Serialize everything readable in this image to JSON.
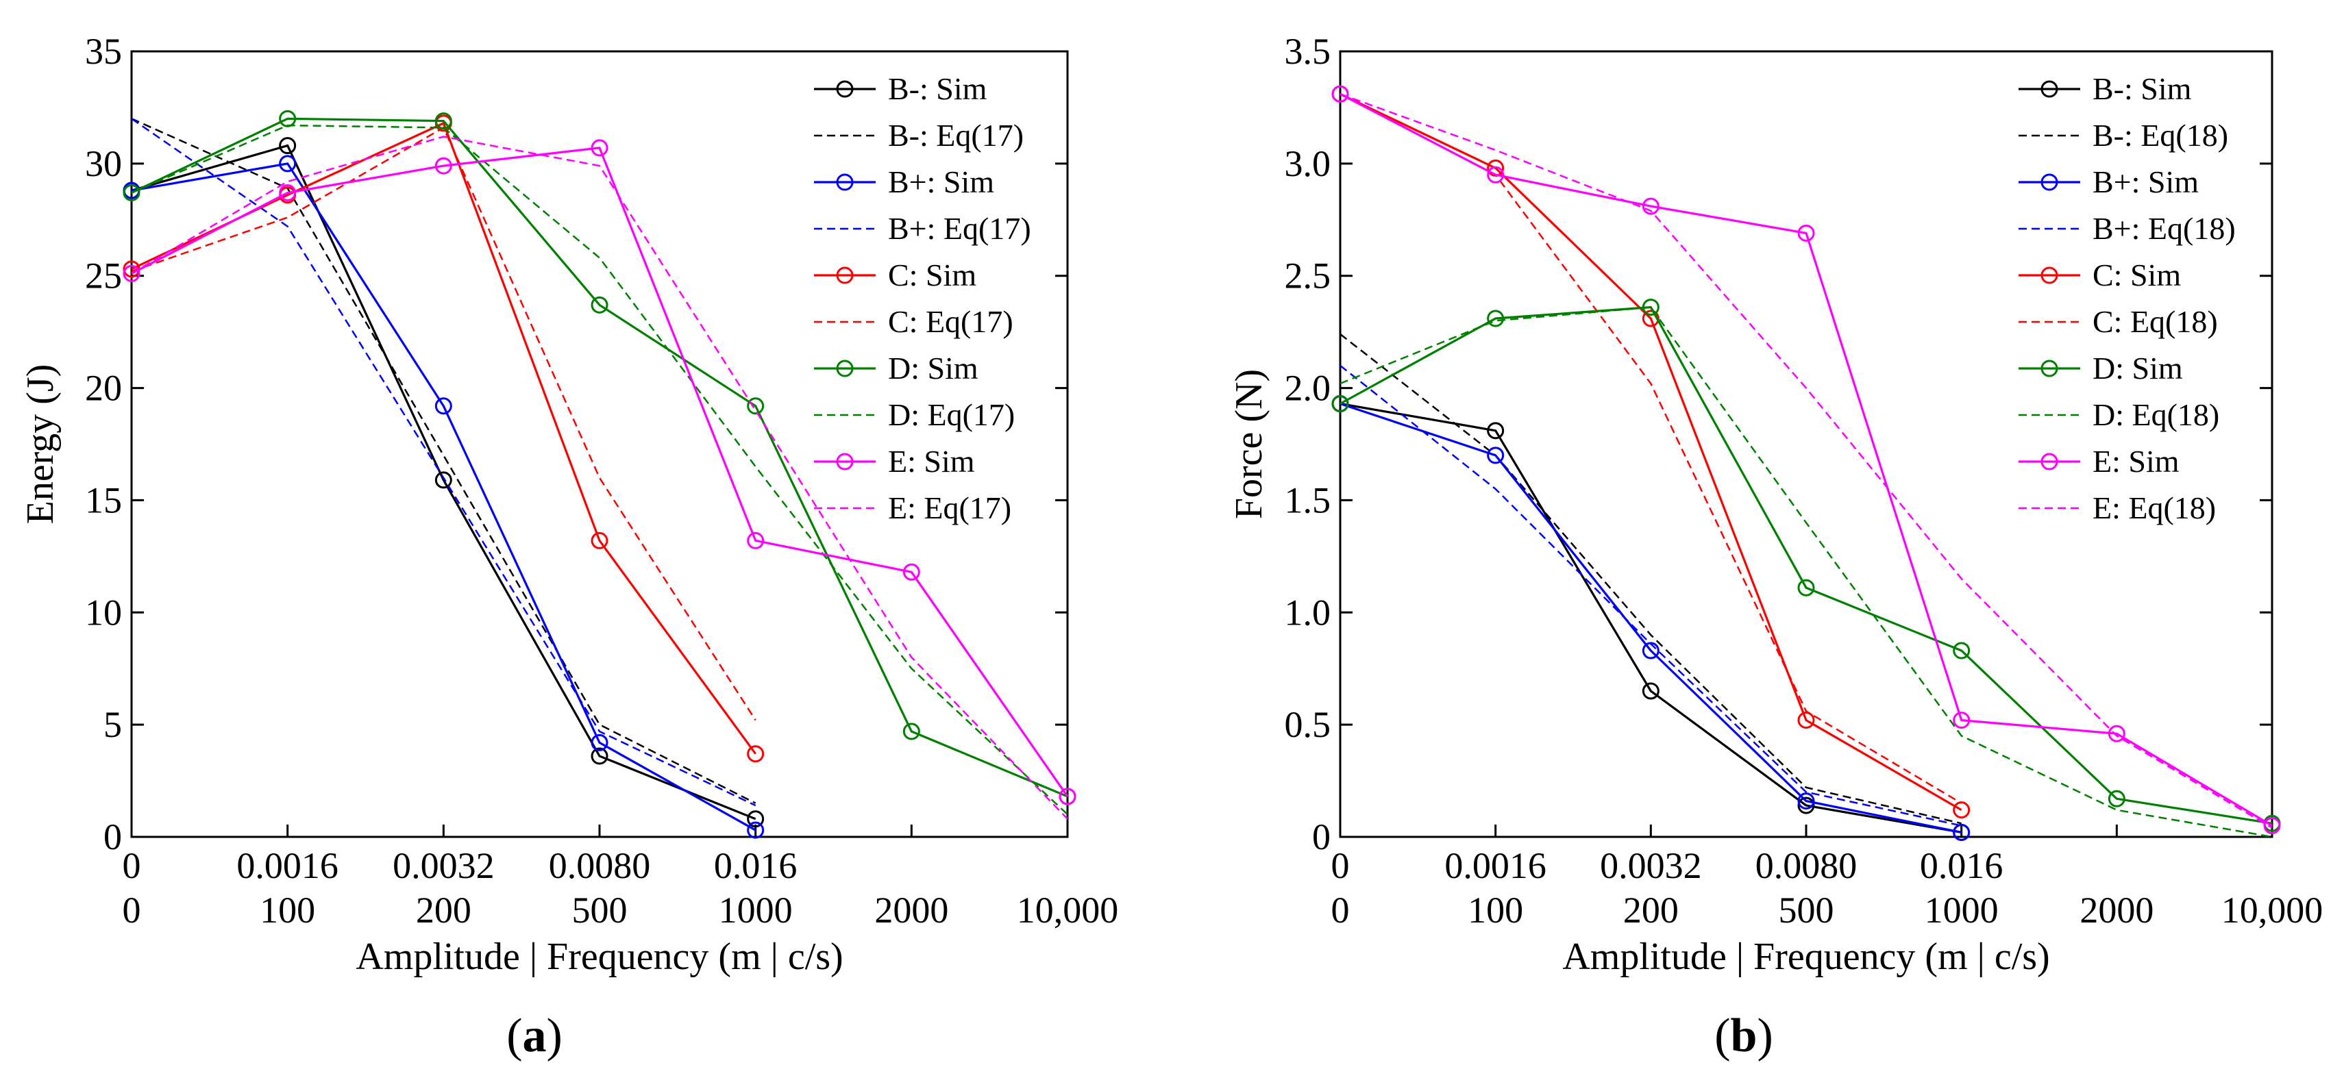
{
  "colors": {
    "B-": "#000000",
    "B+": "#0000ff",
    "C": "#ff0000",
    "D": "#008000",
    "E": "#ff00ff"
  },
  "chart_data": [
    {
      "type": "line",
      "panel_label": "a",
      "xlabel": "Amplitude | Frequency (m | c/s)",
      "ylabel": "Energy (J)",
      "ylim": [
        0,
        35
      ],
      "yticks": [
        "0",
        "5",
        "10",
        "15",
        "20",
        "25",
        "30",
        "35"
      ],
      "yticks_values": [
        0,
        5,
        10,
        15,
        20,
        25,
        30,
        35
      ],
      "xticks_top": [
        "0",
        "0.0016",
        "0.0032",
        "0.0080",
        "0.016"
      ],
      "xticks_bottom": [
        "0",
        "100",
        "200",
        "500",
        "1000",
        "2000",
        "10,000"
      ],
      "x_positions": [
        0,
        1,
        2,
        3,
        4,
        5,
        6
      ],
      "legend_position": "top-right",
      "series": [
        {
          "name": "B-: Sim",
          "group": "B-",
          "style": "solid",
          "markers": true,
          "x": [
            0,
            1,
            2,
            3,
            4
          ],
          "y": [
            28.8,
            30.8,
            15.9,
            3.6,
            0.8
          ]
        },
        {
          "name": "B-: Eq(17)",
          "group": "B-",
          "style": "dashed",
          "markers": false,
          "x": [
            0,
            1,
            2,
            3,
            4
          ],
          "y": [
            32.0,
            28.9,
            17.0,
            5.0,
            1.5
          ]
        },
        {
          "name": "B+: Sim",
          "group": "B+",
          "style": "solid",
          "markers": true,
          "x": [
            0,
            1,
            2,
            3,
            4
          ],
          "y": [
            28.8,
            30.0,
            19.2,
            4.2,
            0.3
          ]
        },
        {
          "name": "B+: Eq(17)",
          "group": "B+",
          "style": "dashed",
          "markers": false,
          "x": [
            0,
            1,
            2,
            3,
            4
          ],
          "y": [
            32.0,
            27.2,
            16.0,
            4.7,
            1.4
          ]
        },
        {
          "name": "C: Sim",
          "group": "C",
          "style": "solid",
          "markers": true,
          "x": [
            0,
            1,
            2,
            3,
            4
          ],
          "y": [
            25.3,
            28.6,
            31.8,
            13.2,
            3.7
          ]
        },
        {
          "name": "C: Eq(17)",
          "group": "C",
          "style": "dashed",
          "markers": false,
          "x": [
            0,
            1,
            2,
            3,
            4
          ],
          "y": [
            25.2,
            27.6,
            31.6,
            16.0,
            5.2
          ]
        },
        {
          "name": "D: Sim",
          "group": "D",
          "style": "solid",
          "markers": true,
          "x": [
            0,
            1,
            2,
            3,
            4,
            5,
            6
          ],
          "y": [
            28.7,
            32.0,
            31.9,
            23.7,
            19.2,
            4.7,
            1.8
          ]
        },
        {
          "name": "D: Eq(17)",
          "group": "D",
          "style": "dashed",
          "markers": false,
          "x": [
            0,
            1,
            2,
            3,
            4,
            5,
            6
          ],
          "y": [
            28.7,
            31.7,
            31.6,
            25.8,
            16.5,
            7.5,
            1.0
          ]
        },
        {
          "name": "E: Sim",
          "group": "E",
          "style": "solid",
          "markers": true,
          "x": [
            0,
            1,
            2,
            3,
            4,
            5,
            6
          ],
          "y": [
            25.1,
            28.7,
            29.9,
            30.7,
            13.2,
            11.8,
            1.8
          ]
        },
        {
          "name": "E: Eq(17)",
          "group": "E",
          "style": "dashed",
          "markers": false,
          "x": [
            0,
            1,
            2,
            3,
            4,
            5,
            6
          ],
          "y": [
            25.1,
            29.2,
            31.2,
            29.9,
            19.0,
            8.0,
            0.8
          ]
        }
      ]
    },
    {
      "type": "line",
      "panel_label": "b",
      "xlabel": "Amplitude | Frequency (m | c/s)",
      "ylabel": "Force (N)",
      "ylim": [
        0,
        3.5
      ],
      "yticks": [
        "0",
        "0.5",
        "1.0",
        "1.5",
        "2.0",
        "2.5",
        "3.0",
        "3.5"
      ],
      "yticks_values": [
        0,
        0.5,
        1.0,
        1.5,
        2.0,
        2.5,
        3.0,
        3.5
      ],
      "xticks_top": [
        "0",
        "0.0016",
        "0.0032",
        "0.0080",
        "0.016"
      ],
      "xticks_bottom": [
        "0",
        "100",
        "200",
        "500",
        "1000",
        "2000",
        "10,000"
      ],
      "x_positions": [
        0,
        1,
        2,
        3,
        4,
        5,
        6
      ],
      "legend_position": "top-right",
      "series": [
        {
          "name": "B-: Sim",
          "group": "B-",
          "style": "solid",
          "markers": true,
          "x": [
            0,
            1,
            2,
            3,
            4
          ],
          "y": [
            1.93,
            1.81,
            0.65,
            0.14,
            0.02
          ]
        },
        {
          "name": "B-: Eq(18)",
          "group": "B-",
          "style": "dashed",
          "markers": false,
          "x": [
            0,
            1,
            2,
            3,
            4
          ],
          "y": [
            2.24,
            1.7,
            0.9,
            0.22,
            0.06
          ]
        },
        {
          "name": "B+: Sim",
          "group": "B+",
          "style": "solid",
          "markers": true,
          "x": [
            0,
            1,
            2,
            3,
            4
          ],
          "y": [
            1.93,
            1.7,
            0.83,
            0.16,
            0.02
          ]
        },
        {
          "name": "B+: Eq(18)",
          "group": "B+",
          "style": "dashed",
          "markers": false,
          "x": [
            0,
            1,
            2,
            3,
            4
          ],
          "y": [
            2.1,
            1.55,
            0.86,
            0.2,
            0.05
          ]
        },
        {
          "name": "C: Sim",
          "group": "C",
          "style": "solid",
          "markers": true,
          "x": [
            0,
            1,
            2,
            3,
            4
          ],
          "y": [
            3.31,
            2.98,
            2.31,
            0.52,
            0.12
          ]
        },
        {
          "name": "C: Eq(18)",
          "group": "C",
          "style": "dashed",
          "markers": false,
          "x": [
            0,
            1,
            2,
            3,
            4
          ],
          "y": [
            3.31,
            2.95,
            2.02,
            0.56,
            0.15
          ]
        },
        {
          "name": "D: Sim",
          "group": "D",
          "style": "solid",
          "markers": true,
          "x": [
            0,
            1,
            2,
            3,
            4,
            5,
            6
          ],
          "y": [
            1.93,
            2.31,
            2.36,
            1.11,
            0.83,
            0.17,
            0.06
          ]
        },
        {
          "name": "D: Eq(18)",
          "group": "D",
          "style": "dashed",
          "markers": false,
          "x": [
            0,
            1,
            2,
            3,
            4,
            5,
            6
          ],
          "y": [
            2.02,
            2.3,
            2.36,
            1.4,
            0.45,
            0.12,
            0.0
          ]
        },
        {
          "name": "E: Sim",
          "group": "E",
          "style": "solid",
          "markers": true,
          "x": [
            0,
            1,
            2,
            3,
            4,
            5,
            6
          ],
          "y": [
            3.31,
            2.95,
            2.81,
            2.69,
            0.52,
            0.46,
            0.05
          ]
        },
        {
          "name": "E: Eq(18)",
          "group": "E",
          "style": "dashed",
          "markers": false,
          "x": [
            0,
            1,
            2,
            3,
            4,
            5,
            6
          ],
          "y": [
            3.31,
            3.06,
            2.79,
            2.0,
            1.15,
            0.45,
            0.04
          ]
        }
      ]
    }
  ]
}
